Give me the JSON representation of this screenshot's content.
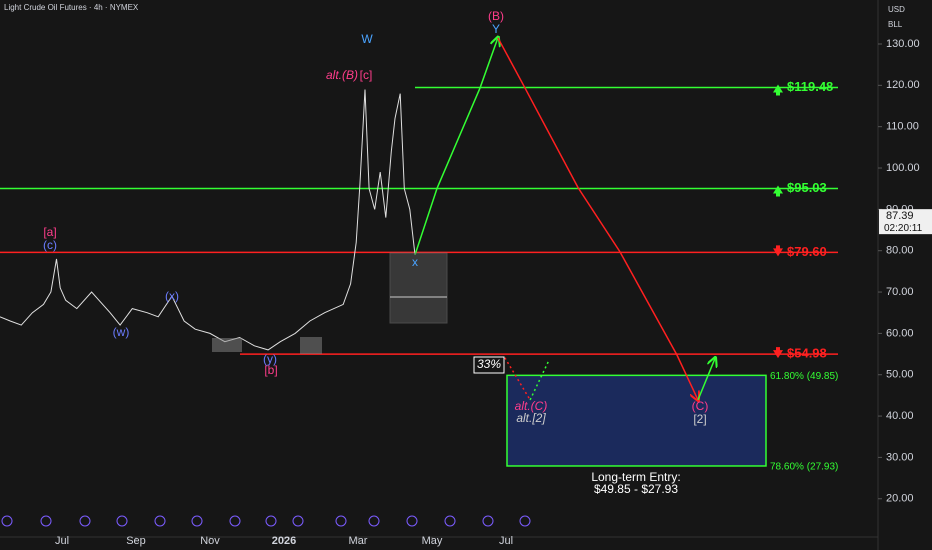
{
  "chart_data": {
    "type": "line",
    "title": "Light Crude Oil Futures · 4h · NYMEX",
    "currency": "USD",
    "unit": "BLL",
    "xlim": [
      -1.676,
      22.054
    ],
    "ylim": [
      16.07,
      140.64
    ],
    "xticks": [
      {
        "value": 0,
        "label": "Jul"
      },
      {
        "value": 2,
        "label": "Sep"
      },
      {
        "value": 4,
        "label": "Nov"
      },
      {
        "value": 6,
        "label": "2026"
      },
      {
        "value": 8,
        "label": "Mar"
      },
      {
        "value": 10,
        "label": "May"
      },
      {
        "value": 12,
        "label": "Jul"
      }
    ],
    "yticks": [
      {
        "value": 20,
        "label": "20.00"
      },
      {
        "value": 30,
        "label": "30.00"
      },
      {
        "value": 40,
        "label": "40.00"
      },
      {
        "value": 50,
        "label": "50.00"
      },
      {
        "value": 60,
        "label": "60.00"
      },
      {
        "value": 70,
        "label": "70.00"
      },
      {
        "value": 80,
        "label": "80.00"
      },
      {
        "value": 90,
        "label": "90.00"
      },
      {
        "value": 100,
        "label": "100.00"
      },
      {
        "value": 110,
        "label": "110.00"
      },
      {
        "value": 120,
        "label": "120.00"
      },
      {
        "value": 130,
        "label": "130.00"
      }
    ],
    "series": [
      {
        "color": "#e0e0e0",
        "style": "solid",
        "x": [
          -1.676,
          -1.4,
          -1.1,
          -0.8,
          -0.5,
          -0.3,
          -0.15,
          -0.05,
          0.1,
          0.4,
          0.8,
          1.0,
          1.3,
          1.57,
          1.9,
          2.3,
          2.6,
          2.97,
          3.3,
          3.6,
          4.0,
          4.4,
          4.8,
          5.2,
          5.57,
          5.9,
          6.3,
          6.7,
          7.1,
          7.6,
          7.8,
          7.95,
          8.05,
          8.19,
          8.3,
          8.45,
          8.6,
          8.75,
          8.9,
          9.0,
          9.14,
          9.25,
          9.4,
          9.54
        ],
        "values": [
          64,
          63,
          62,
          65,
          67,
          70,
          78,
          71,
          68,
          66,
          70,
          68,
          65,
          62,
          66,
          65,
          64,
          69,
          63,
          61,
          60,
          58,
          59,
          57,
          56,
          58,
          60,
          63,
          65,
          67,
          72,
          82,
          96,
          119,
          95,
          90,
          99,
          88,
          104,
          112,
          118,
          95,
          90,
          79
        ]
      },
      {
        "color": "#33ff33",
        "style": "solid",
        "x": [
          9.54,
          10.14,
          11.3,
          11.78
        ],
        "values": [
          79,
          95.2,
          119.4,
          131.5
        ]
      },
      {
        "color": "#ff2020",
        "style": "solid",
        "x": [
          11.78,
          12.51,
          13.95,
          15.08,
          16.62,
          17.19
        ],
        "values": [
          131.5,
          119.4,
          95.2,
          79.7,
          54.8,
          43.9
        ]
      },
      {
        "color": "#33ff33",
        "style": "solid",
        "x": [
          17.19,
          17.65
        ],
        "values": [
          43.9,
          54
        ]
      },
      {
        "color": "#ff2020",
        "style": "dotted",
        "x": [
          11.97,
          12.65
        ],
        "values": [
          54.1,
          43.9
        ]
      },
      {
        "color": "#33ff33",
        "style": "dotted",
        "x": [
          12.65,
          13.14
        ],
        "values": [
          43.9,
          53.1
        ]
      }
    ],
    "levels": [
      {
        "value": 119.48,
        "label": "$119.48",
        "color": "#33ff33",
        "direction": "up"
      },
      {
        "value": 95.03,
        "label": "$95.03",
        "color": "#33ff33",
        "direction": "up"
      },
      {
        "value": 79.6,
        "label": "$79.60",
        "color": "#ff2020",
        "direction": "down"
      },
      {
        "value": 54.98,
        "label": "$54.98",
        "color": "#ff2020",
        "direction": "down"
      }
    ],
    "entry_zone": {
      "top": 49.85,
      "bottom": 27.93,
      "top_label": "61.80% (49.85)",
      "bottom_label": "78.60% (27.93)",
      "title": "Long-term Entry:",
      "range_label": "$49.85 - $27.93",
      "color": "#33ff33"
    },
    "current_price": {
      "value": 87.39,
      "label": "87.39",
      "countdown": "02:20:11"
    },
    "annotations": [
      {
        "text": "(B)"
      },
      {
        "text": "Y"
      },
      {
        "text": "W"
      },
      {
        "text": "alt.(B)"
      },
      {
        "text": "[c]"
      },
      {
        "text": "[a]"
      },
      {
        "text": "(c)"
      },
      {
        "text": "(x)"
      },
      {
        "text": "(w)"
      },
      {
        "text": "(y)"
      },
      {
        "text": "[b]"
      },
      {
        "text": "x"
      },
      {
        "text": "33%"
      },
      {
        "text": "alt.(C)"
      },
      {
        "text": "alt.[2]"
      },
      {
        "text": "(C)"
      },
      {
        "text": "[2]"
      }
    ]
  }
}
